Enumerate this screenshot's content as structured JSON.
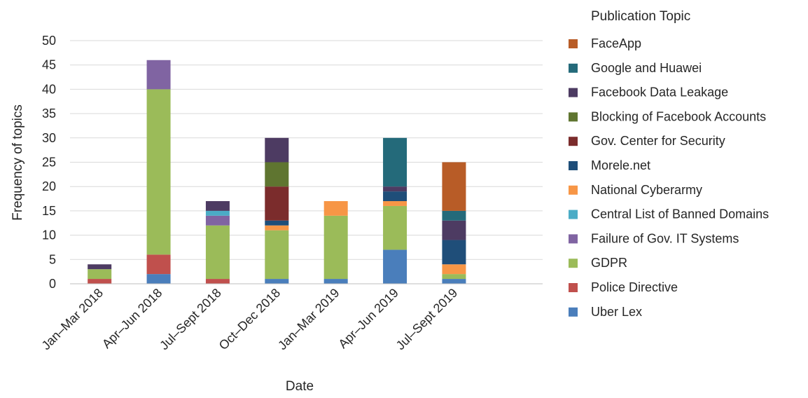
{
  "chart_data": {
    "type": "bar",
    "stacked": true,
    "xlabel": "Date",
    "ylabel": "Frequency of topics",
    "ylim": [
      0,
      50
    ],
    "ytick_step": 5,
    "grid": true,
    "legend_title": "Publication Topic",
    "legend_position": "right",
    "categories": [
      "Jan–Mar 2018",
      "Apr–Jun 2018",
      "Jul–Sept 2018",
      "Oct–Dec 2018",
      "Jan–Mar 2019",
      "Apr–Jun 2019",
      "Jul–Sept 2019"
    ],
    "extra_slots": 1,
    "series": [
      {
        "name": "Uber Lex",
        "color": "#4a7ebb",
        "values": [
          0,
          2,
          0,
          1,
          1,
          7,
          1
        ]
      },
      {
        "name": "Police Directive",
        "color": "#c0504d",
        "values": [
          1,
          4,
          1,
          0,
          0,
          0,
          0
        ]
      },
      {
        "name": "GDPR",
        "color": "#9bbb59",
        "values": [
          2,
          34,
          11,
          10,
          13,
          9,
          1
        ]
      },
      {
        "name": "Failure of Gov. IT Systems",
        "color": "#8064a2",
        "values": [
          0,
          6,
          2,
          0,
          0,
          0,
          0
        ]
      },
      {
        "name": "Central List of Banned Domains",
        "color": "#4bacc6",
        "values": [
          0,
          0,
          1,
          0,
          0,
          0,
          0
        ]
      },
      {
        "name": "National Cyberarmy",
        "color": "#f79646",
        "values": [
          0,
          0,
          0,
          1,
          3,
          1,
          2
        ]
      },
      {
        "name": "Morele.net",
        "color": "#1f4e79",
        "values": [
          0,
          0,
          0,
          1,
          0,
          2,
          5
        ]
      },
      {
        "name": "Gov. Center for Security",
        "color": "#7b2c2c",
        "values": [
          0,
          0,
          0,
          7,
          0,
          0,
          0
        ]
      },
      {
        "name": "Blocking of Facebook Accounts",
        "color": "#5f7530",
        "values": [
          0,
          0,
          0,
          5,
          0,
          0,
          0
        ]
      },
      {
        "name": "Facebook Data Leakage",
        "color": "#4d3b62",
        "values": [
          1,
          0,
          2,
          5,
          0,
          1,
          4
        ]
      },
      {
        "name": "Google and Huawei",
        "color": "#246a7a",
        "values": [
          0,
          0,
          0,
          0,
          0,
          10,
          2
        ]
      },
      {
        "name": "FaceApp",
        "color": "#b85c27",
        "values": [
          0,
          0,
          0,
          0,
          0,
          0,
          10
        ]
      }
    ]
  }
}
